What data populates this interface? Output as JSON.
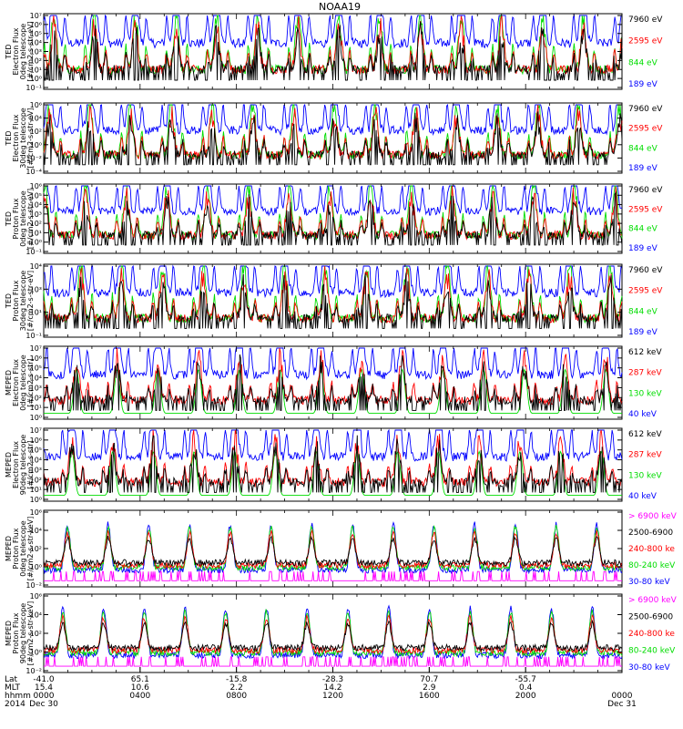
{
  "title": "NOAA19",
  "chart_data": [
    {
      "type": "line",
      "ylabel_lines": [
        "TED",
        "Electron Flux",
        "0deg telescope",
        "[#/cm2-s-str-eV]"
      ],
      "y_ticks": [
        "10⁻¹",
        "10⁰",
        "10¹",
        "10²",
        "10³",
        "10⁴",
        "10⁵",
        "10⁶",
        "10⁷"
      ],
      "series": [
        {
          "name": "7960 eV",
          "color": "#000000"
        },
        {
          "name": "2595 eV",
          "color": "#ff0000"
        },
        {
          "name": "844 eV",
          "color": "#00dd00"
        },
        {
          "name": "189 eV",
          "color": "#0000ff"
        }
      ]
    },
    {
      "type": "line",
      "ylabel_lines": [
        "TED",
        "Electron Flux",
        "30deg telescope",
        "[#/cm2-s-str-eV]"
      ],
      "y_ticks": [
        "10⁻⁴",
        "10⁻²",
        "10⁰",
        "10²",
        "10⁴",
        "10⁶"
      ],
      "series": [
        {
          "name": "7960 eV",
          "color": "#000000"
        },
        {
          "name": "2595 eV",
          "color": "#ff0000"
        },
        {
          "name": "844 eV",
          "color": "#00dd00"
        },
        {
          "name": "189 eV",
          "color": "#0000ff"
        }
      ]
    },
    {
      "type": "line",
      "ylabel_lines": [
        "TED",
        "Proton Flux",
        "0deg telescope",
        "[#/cm2-s-str-eV]"
      ],
      "y_ticks": [
        "10⁻¹",
        "10⁰",
        "10¹",
        "10²",
        "10³",
        "10⁴",
        "10⁵",
        "10⁶"
      ],
      "series": [
        {
          "name": "7960 eV",
          "color": "#000000"
        },
        {
          "name": "2595 eV",
          "color": "#ff0000"
        },
        {
          "name": "844 eV",
          "color": "#00dd00"
        },
        {
          "name": "189 eV",
          "color": "#0000ff"
        }
      ]
    },
    {
      "type": "line",
      "ylabel_lines": [
        "TED",
        "Proton Flux",
        "30deg telescope",
        "[#/cm2-s-str-eV]"
      ],
      "y_ticks": [
        "10⁻¹",
        "10¹",
        "10³",
        "10⁴"
      ],
      "series": [
        {
          "name": "7960 eV",
          "color": "#000000"
        },
        {
          "name": "2595 eV",
          "color": "#ff0000"
        },
        {
          "name": "844 eV",
          "color": "#00dd00"
        },
        {
          "name": "189 eV",
          "color": "#0000ff"
        }
      ]
    },
    {
      "type": "line",
      "ylabel_lines": [
        "MEPED",
        "Electron Flux",
        "0deg telescope",
        "[#/cm2-s-str]"
      ],
      "y_ticks": [
        "10⁰",
        "10¹",
        "10²",
        "10³",
        "10⁴",
        "10⁵",
        "10⁶",
        "10⁷"
      ],
      "series": [
        {
          "name": "612 keV",
          "color": "#000000"
        },
        {
          "name": "287 keV",
          "color": "#ff0000"
        },
        {
          "name": "130 keV",
          "color": "#00dd00"
        },
        {
          "name": "40 keV",
          "color": "#0000ff"
        }
      ]
    },
    {
      "type": "line",
      "ylabel_lines": [
        "MEPED",
        "Electron Flux",
        "90deg telescope",
        "[#/cm2-s-str]"
      ],
      "y_ticks": [
        "10⁰",
        "10¹",
        "10²",
        "10³",
        "10⁴",
        "10⁵",
        "10⁶",
        "10⁷"
      ],
      "series": [
        {
          "name": "612 keV",
          "color": "#000000"
        },
        {
          "name": "287 keV",
          "color": "#ff0000"
        },
        {
          "name": "130 keV",
          "color": "#00dd00"
        },
        {
          "name": "40 keV",
          "color": "#0000ff"
        }
      ]
    },
    {
      "type": "line",
      "ylabel_lines": [
        "MEPED",
        "Proton Flux",
        "0deg telescope",
        "[#/cm2-s-str-keV]"
      ],
      "y_ticks": [
        "10⁻²",
        "10⁰",
        "10²",
        "10⁴",
        "10⁶"
      ],
      "series": [
        {
          "name": "> 6900 keV",
          "color": "#ff00ff"
        },
        {
          "name": "2500-6900",
          "color": "#000000"
        },
        {
          "name": "240-800 ke",
          "color": "#ff0000"
        },
        {
          "name": "80-240 keV",
          "color": "#00dd00"
        },
        {
          "name": "30-80 keV",
          "color": "#0000ff"
        }
      ]
    },
    {
      "type": "line",
      "ylabel_lines": [
        "MEPED",
        "Proton Flux",
        "90deg telescope",
        "[#/cm2-s-str-keV]"
      ],
      "y_ticks": [
        "10⁻²",
        "10⁰",
        "10²",
        "10⁴",
        "10⁶"
      ],
      "series": [
        {
          "name": "> 6900 keV",
          "color": "#ff00ff"
        },
        {
          "name": "2500-6900",
          "color": "#000000"
        },
        {
          "name": "240-800 ke",
          "color": "#ff0000"
        },
        {
          "name": "80-240 keV",
          "color": "#00dd00"
        },
        {
          "name": "30-80 keV",
          "color": "#0000ff"
        }
      ]
    }
  ],
  "x_axis": {
    "row_labels": [
      "Lat",
      "MLT",
      "hhmm",
      "2014"
    ],
    "ticks": [
      {
        "lat": "-41.0",
        "mlt": "15.4",
        "hhmm": "0000",
        "date": "Dec 30"
      },
      {
        "lat": "65.1",
        "mlt": "10.6",
        "hhmm": "0400",
        "date": ""
      },
      {
        "lat": "-15.8",
        "mlt": "2.2",
        "hhmm": "0800",
        "date": ""
      },
      {
        "lat": "-28.3",
        "mlt": "14.2",
        "hhmm": "1200",
        "date": ""
      },
      {
        "lat": "70.7",
        "mlt": "2.9",
        "hhmm": "1600",
        "date": ""
      },
      {
        "lat": "-55.7",
        "mlt": "0.4",
        "hhmm": "2000",
        "date": ""
      },
      {
        "lat": "",
        "mlt": "",
        "hhmm": "0000",
        "date": "Dec 31"
      }
    ]
  }
}
